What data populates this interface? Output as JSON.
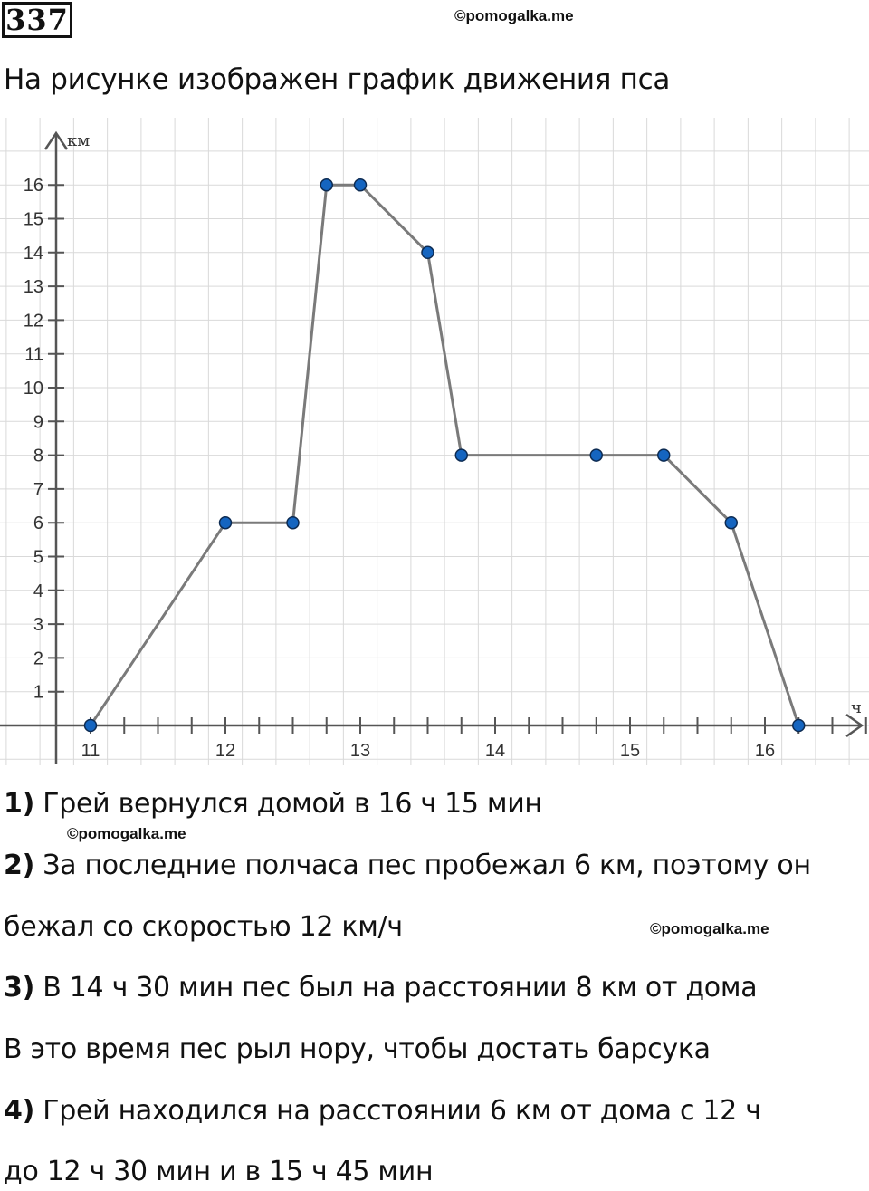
{
  "problem": {
    "number": "337",
    "watermark": "©pomogalka.me",
    "heading": "На рисунке изображен график движения пса"
  },
  "chart_data": {
    "type": "line",
    "xlabel": "ч",
    "ylabel": "км",
    "x_ticks": [
      "11",
      "12",
      "13",
      "14",
      "15",
      "16"
    ],
    "y_ticks": [
      "1",
      "2",
      "3",
      "4",
      "5",
      "6",
      "7",
      "8",
      "9",
      "10",
      "11",
      "12",
      "13",
      "14",
      "15",
      "16"
    ],
    "x_range": [
      10.5,
      17.25
    ],
    "y_range": [
      -1,
      17.5
    ],
    "grid": true,
    "points": [
      {
        "x": 11,
        "y": 0
      },
      {
        "x": 12,
        "y": 6
      },
      {
        "x": 12.5,
        "y": 6
      },
      {
        "x": 12.75,
        "y": 16
      },
      {
        "x": 13,
        "y": 16
      },
      {
        "x": 13.5,
        "y": 14
      },
      {
        "x": 13.75,
        "y": 8
      },
      {
        "x": 14.75,
        "y": 8
      },
      {
        "x": 15.25,
        "y": 8
      },
      {
        "x": 15.75,
        "y": 6
      },
      {
        "x": 16.25,
        "y": 0
      }
    ],
    "line_color": "#7a7a7a",
    "point_color": "#1565c0"
  },
  "answers": {
    "a1_num": "1)",
    "a1_text": " Грей вернулся домой в 16 ч 15 мин",
    "a2_num": "2)",
    "a2_text": " За последние полчаса пес пробежал 6 км, поэтому он",
    "a2_cont": "бежал со скоростью 12 км/ч",
    "a3_num": "3)",
    "a3_text": " В 14 ч 30 мин пес был на расстоянии 8 км от дома",
    "a3_cont": "В это время пес рыл нору, чтобы достать барсука",
    "a4_num": "4)",
    "a4_text": " Грей находился на расстоянии 6 км от дома с 12 ч",
    "a4_cont": "до 12 ч 30 мин и в 15 ч 45 мин"
  }
}
